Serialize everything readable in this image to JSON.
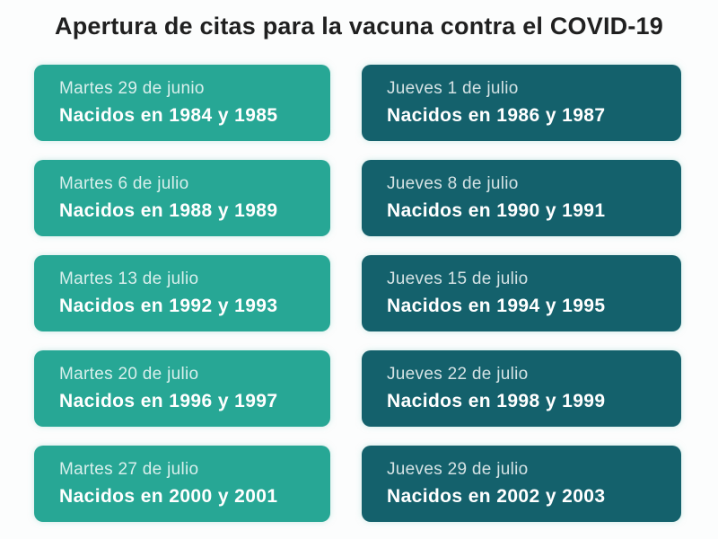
{
  "title": "Apertura de citas para la vacuna contra el COVID-19",
  "colors": {
    "background": "#fcfdfd",
    "title_text": "#202020",
    "card_left": "#27a795",
    "card_right": "#14616c",
    "date_text": "#cdece7",
    "cohort_text": "#ffffff"
  },
  "cards": [
    {
      "date": "Martes 29 de junio",
      "cohort": "Nacidos en 1984 y 1985",
      "column": "left"
    },
    {
      "date": "Jueves 1 de julio",
      "cohort": "Nacidos en 1986 y 1987",
      "column": "right"
    },
    {
      "date": "Martes 6 de julio",
      "cohort": "Nacidos en 1988 y 1989",
      "column": "left"
    },
    {
      "date": "Jueves 8 de julio",
      "cohort": "Nacidos en 1990 y 1991",
      "column": "right"
    },
    {
      "date": "Martes 13 de julio",
      "cohort": "Nacidos en 1992 y 1993",
      "column": "left"
    },
    {
      "date": "Jueves 15 de julio",
      "cohort": "Nacidos en 1994 y 1995",
      "column": "right"
    },
    {
      "date": "Martes 20 de julio",
      "cohort": "Nacidos en 1996 y 1997",
      "column": "left"
    },
    {
      "date": "Jueves 22 de julio",
      "cohort": "Nacidos en 1998 y 1999",
      "column": "right"
    },
    {
      "date": "Martes 27 de julio",
      "cohort": "Nacidos en 2000 y 2001",
      "column": "left"
    },
    {
      "date": "Jueves 29 de julio",
      "cohort": "Nacidos en 2002 y 2003",
      "column": "right"
    }
  ]
}
